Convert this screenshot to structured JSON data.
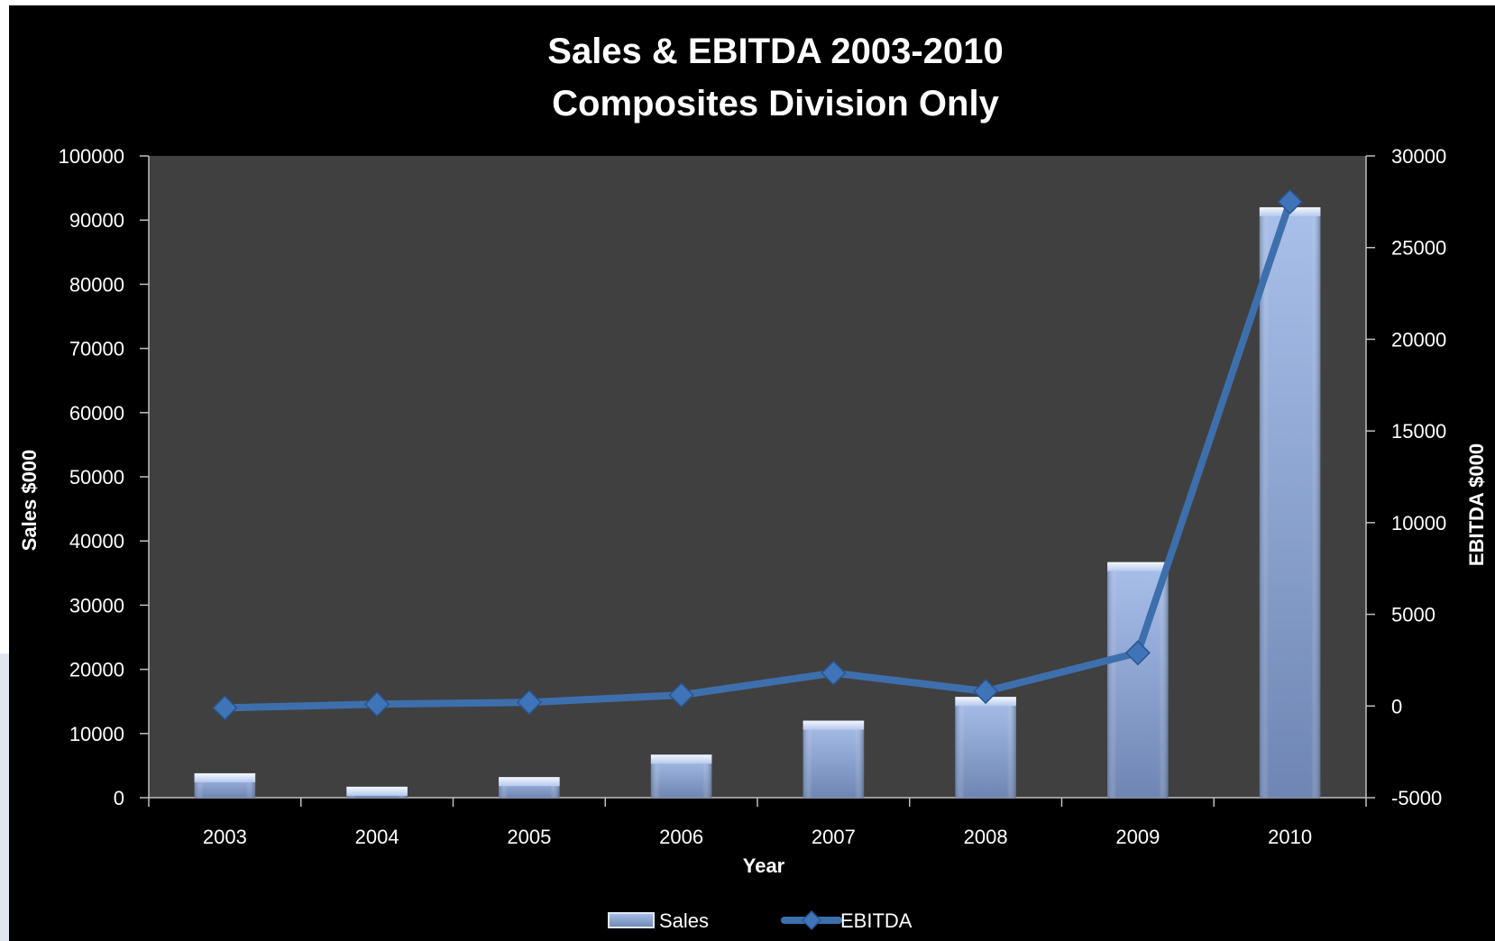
{
  "chart_data": {
    "type": "bar+line",
    "title": "Sales & EBITDA 2003-2010",
    "subtitle": "Composites Division Only",
    "xlabel": "Year",
    "ylabel_left": "Sales $000",
    "ylabel_right": "EBITDA $000",
    "categories": [
      "2003",
      "2004",
      "2005",
      "2006",
      "2007",
      "2008",
      "2009",
      "2010"
    ],
    "ylim_left": [
      0,
      100000
    ],
    "yticks_left": [
      0,
      10000,
      20000,
      30000,
      40000,
      50000,
      60000,
      70000,
      80000,
      90000,
      100000
    ],
    "ylim_right": [
      -5000,
      30000
    ],
    "yticks_right": [
      -5000,
      0,
      5000,
      10000,
      15000,
      20000,
      25000,
      30000
    ],
    "series": [
      {
        "name": "Sales",
        "type": "bar",
        "axis": "left",
        "values": [
          3800,
          1700,
          3200,
          6700,
          12000,
          15700,
          36700,
          92000
        ]
      },
      {
        "name": "EBITDA",
        "type": "line",
        "axis": "right",
        "values": [
          -100,
          100,
          200,
          600,
          1800,
          800,
          2900,
          27500
        ]
      }
    ],
    "legend_position": "bottom",
    "grid": false
  },
  "colors": {
    "background": "#000000",
    "plot_background": "#404040",
    "bar_fill": "#8aa6d6",
    "bar_highlight": "#dfe9fb",
    "line": "#3e6fad",
    "marker": "#3f75b8"
  }
}
